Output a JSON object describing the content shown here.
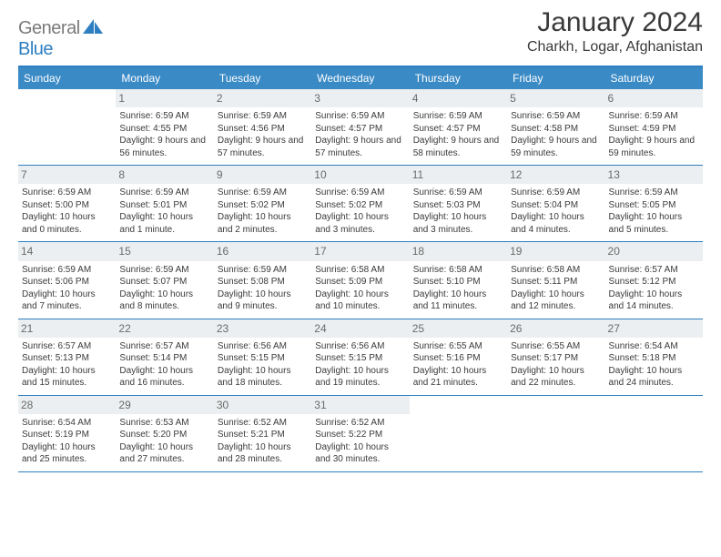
{
  "brand": {
    "part1": "General",
    "part2": "Blue"
  },
  "title": "January 2024",
  "location": "Charkh, Logar, Afghanistan",
  "colors": {
    "header_bg": "#3a8ac6",
    "accent": "#2d7fc1",
    "logo_gray": "#7a7a7a",
    "text": "#3a3a3a",
    "daynum_bg": "#eceff1",
    "daynum_text": "#6a6a6a",
    "white": "#ffffff"
  },
  "weekdays": [
    "Sunday",
    "Monday",
    "Tuesday",
    "Wednesday",
    "Thursday",
    "Friday",
    "Saturday"
  ],
  "weeks": [
    [
      {
        "n": "",
        "sr": "",
        "ss": "",
        "dl": ""
      },
      {
        "n": "1",
        "sr": "6:59 AM",
        "ss": "4:55 PM",
        "dl": "9 hours and 56 minutes."
      },
      {
        "n": "2",
        "sr": "6:59 AM",
        "ss": "4:56 PM",
        "dl": "9 hours and 57 minutes."
      },
      {
        "n": "3",
        "sr": "6:59 AM",
        "ss": "4:57 PM",
        "dl": "9 hours and 57 minutes."
      },
      {
        "n": "4",
        "sr": "6:59 AM",
        "ss": "4:57 PM",
        "dl": "9 hours and 58 minutes."
      },
      {
        "n": "5",
        "sr": "6:59 AM",
        "ss": "4:58 PM",
        "dl": "9 hours and 59 minutes."
      },
      {
        "n": "6",
        "sr": "6:59 AM",
        "ss": "4:59 PM",
        "dl": "9 hours and 59 minutes."
      }
    ],
    [
      {
        "n": "7",
        "sr": "6:59 AM",
        "ss": "5:00 PM",
        "dl": "10 hours and 0 minutes."
      },
      {
        "n": "8",
        "sr": "6:59 AM",
        "ss": "5:01 PM",
        "dl": "10 hours and 1 minute."
      },
      {
        "n": "9",
        "sr": "6:59 AM",
        "ss": "5:02 PM",
        "dl": "10 hours and 2 minutes."
      },
      {
        "n": "10",
        "sr": "6:59 AM",
        "ss": "5:02 PM",
        "dl": "10 hours and 3 minutes."
      },
      {
        "n": "11",
        "sr": "6:59 AM",
        "ss": "5:03 PM",
        "dl": "10 hours and 3 minutes."
      },
      {
        "n": "12",
        "sr": "6:59 AM",
        "ss": "5:04 PM",
        "dl": "10 hours and 4 minutes."
      },
      {
        "n": "13",
        "sr": "6:59 AM",
        "ss": "5:05 PM",
        "dl": "10 hours and 5 minutes."
      }
    ],
    [
      {
        "n": "14",
        "sr": "6:59 AM",
        "ss": "5:06 PM",
        "dl": "10 hours and 7 minutes."
      },
      {
        "n": "15",
        "sr": "6:59 AM",
        "ss": "5:07 PM",
        "dl": "10 hours and 8 minutes."
      },
      {
        "n": "16",
        "sr": "6:59 AM",
        "ss": "5:08 PM",
        "dl": "10 hours and 9 minutes."
      },
      {
        "n": "17",
        "sr": "6:58 AM",
        "ss": "5:09 PM",
        "dl": "10 hours and 10 minutes."
      },
      {
        "n": "18",
        "sr": "6:58 AM",
        "ss": "5:10 PM",
        "dl": "10 hours and 11 minutes."
      },
      {
        "n": "19",
        "sr": "6:58 AM",
        "ss": "5:11 PM",
        "dl": "10 hours and 12 minutes."
      },
      {
        "n": "20",
        "sr": "6:57 AM",
        "ss": "5:12 PM",
        "dl": "10 hours and 14 minutes."
      }
    ],
    [
      {
        "n": "21",
        "sr": "6:57 AM",
        "ss": "5:13 PM",
        "dl": "10 hours and 15 minutes."
      },
      {
        "n": "22",
        "sr": "6:57 AM",
        "ss": "5:14 PM",
        "dl": "10 hours and 16 minutes."
      },
      {
        "n": "23",
        "sr": "6:56 AM",
        "ss": "5:15 PM",
        "dl": "10 hours and 18 minutes."
      },
      {
        "n": "24",
        "sr": "6:56 AM",
        "ss": "5:15 PM",
        "dl": "10 hours and 19 minutes."
      },
      {
        "n": "25",
        "sr": "6:55 AM",
        "ss": "5:16 PM",
        "dl": "10 hours and 21 minutes."
      },
      {
        "n": "26",
        "sr": "6:55 AM",
        "ss": "5:17 PM",
        "dl": "10 hours and 22 minutes."
      },
      {
        "n": "27",
        "sr": "6:54 AM",
        "ss": "5:18 PM",
        "dl": "10 hours and 24 minutes."
      }
    ],
    [
      {
        "n": "28",
        "sr": "6:54 AM",
        "ss": "5:19 PM",
        "dl": "10 hours and 25 minutes."
      },
      {
        "n": "29",
        "sr": "6:53 AM",
        "ss": "5:20 PM",
        "dl": "10 hours and 27 minutes."
      },
      {
        "n": "30",
        "sr": "6:52 AM",
        "ss": "5:21 PM",
        "dl": "10 hours and 28 minutes."
      },
      {
        "n": "31",
        "sr": "6:52 AM",
        "ss": "5:22 PM",
        "dl": "10 hours and 30 minutes."
      },
      {
        "n": "",
        "sr": "",
        "ss": "",
        "dl": ""
      },
      {
        "n": "",
        "sr": "",
        "ss": "",
        "dl": ""
      },
      {
        "n": "",
        "sr": "",
        "ss": "",
        "dl": ""
      }
    ]
  ],
  "labels": {
    "sunrise": "Sunrise:",
    "sunset": "Sunset:",
    "daylight": "Daylight:"
  }
}
